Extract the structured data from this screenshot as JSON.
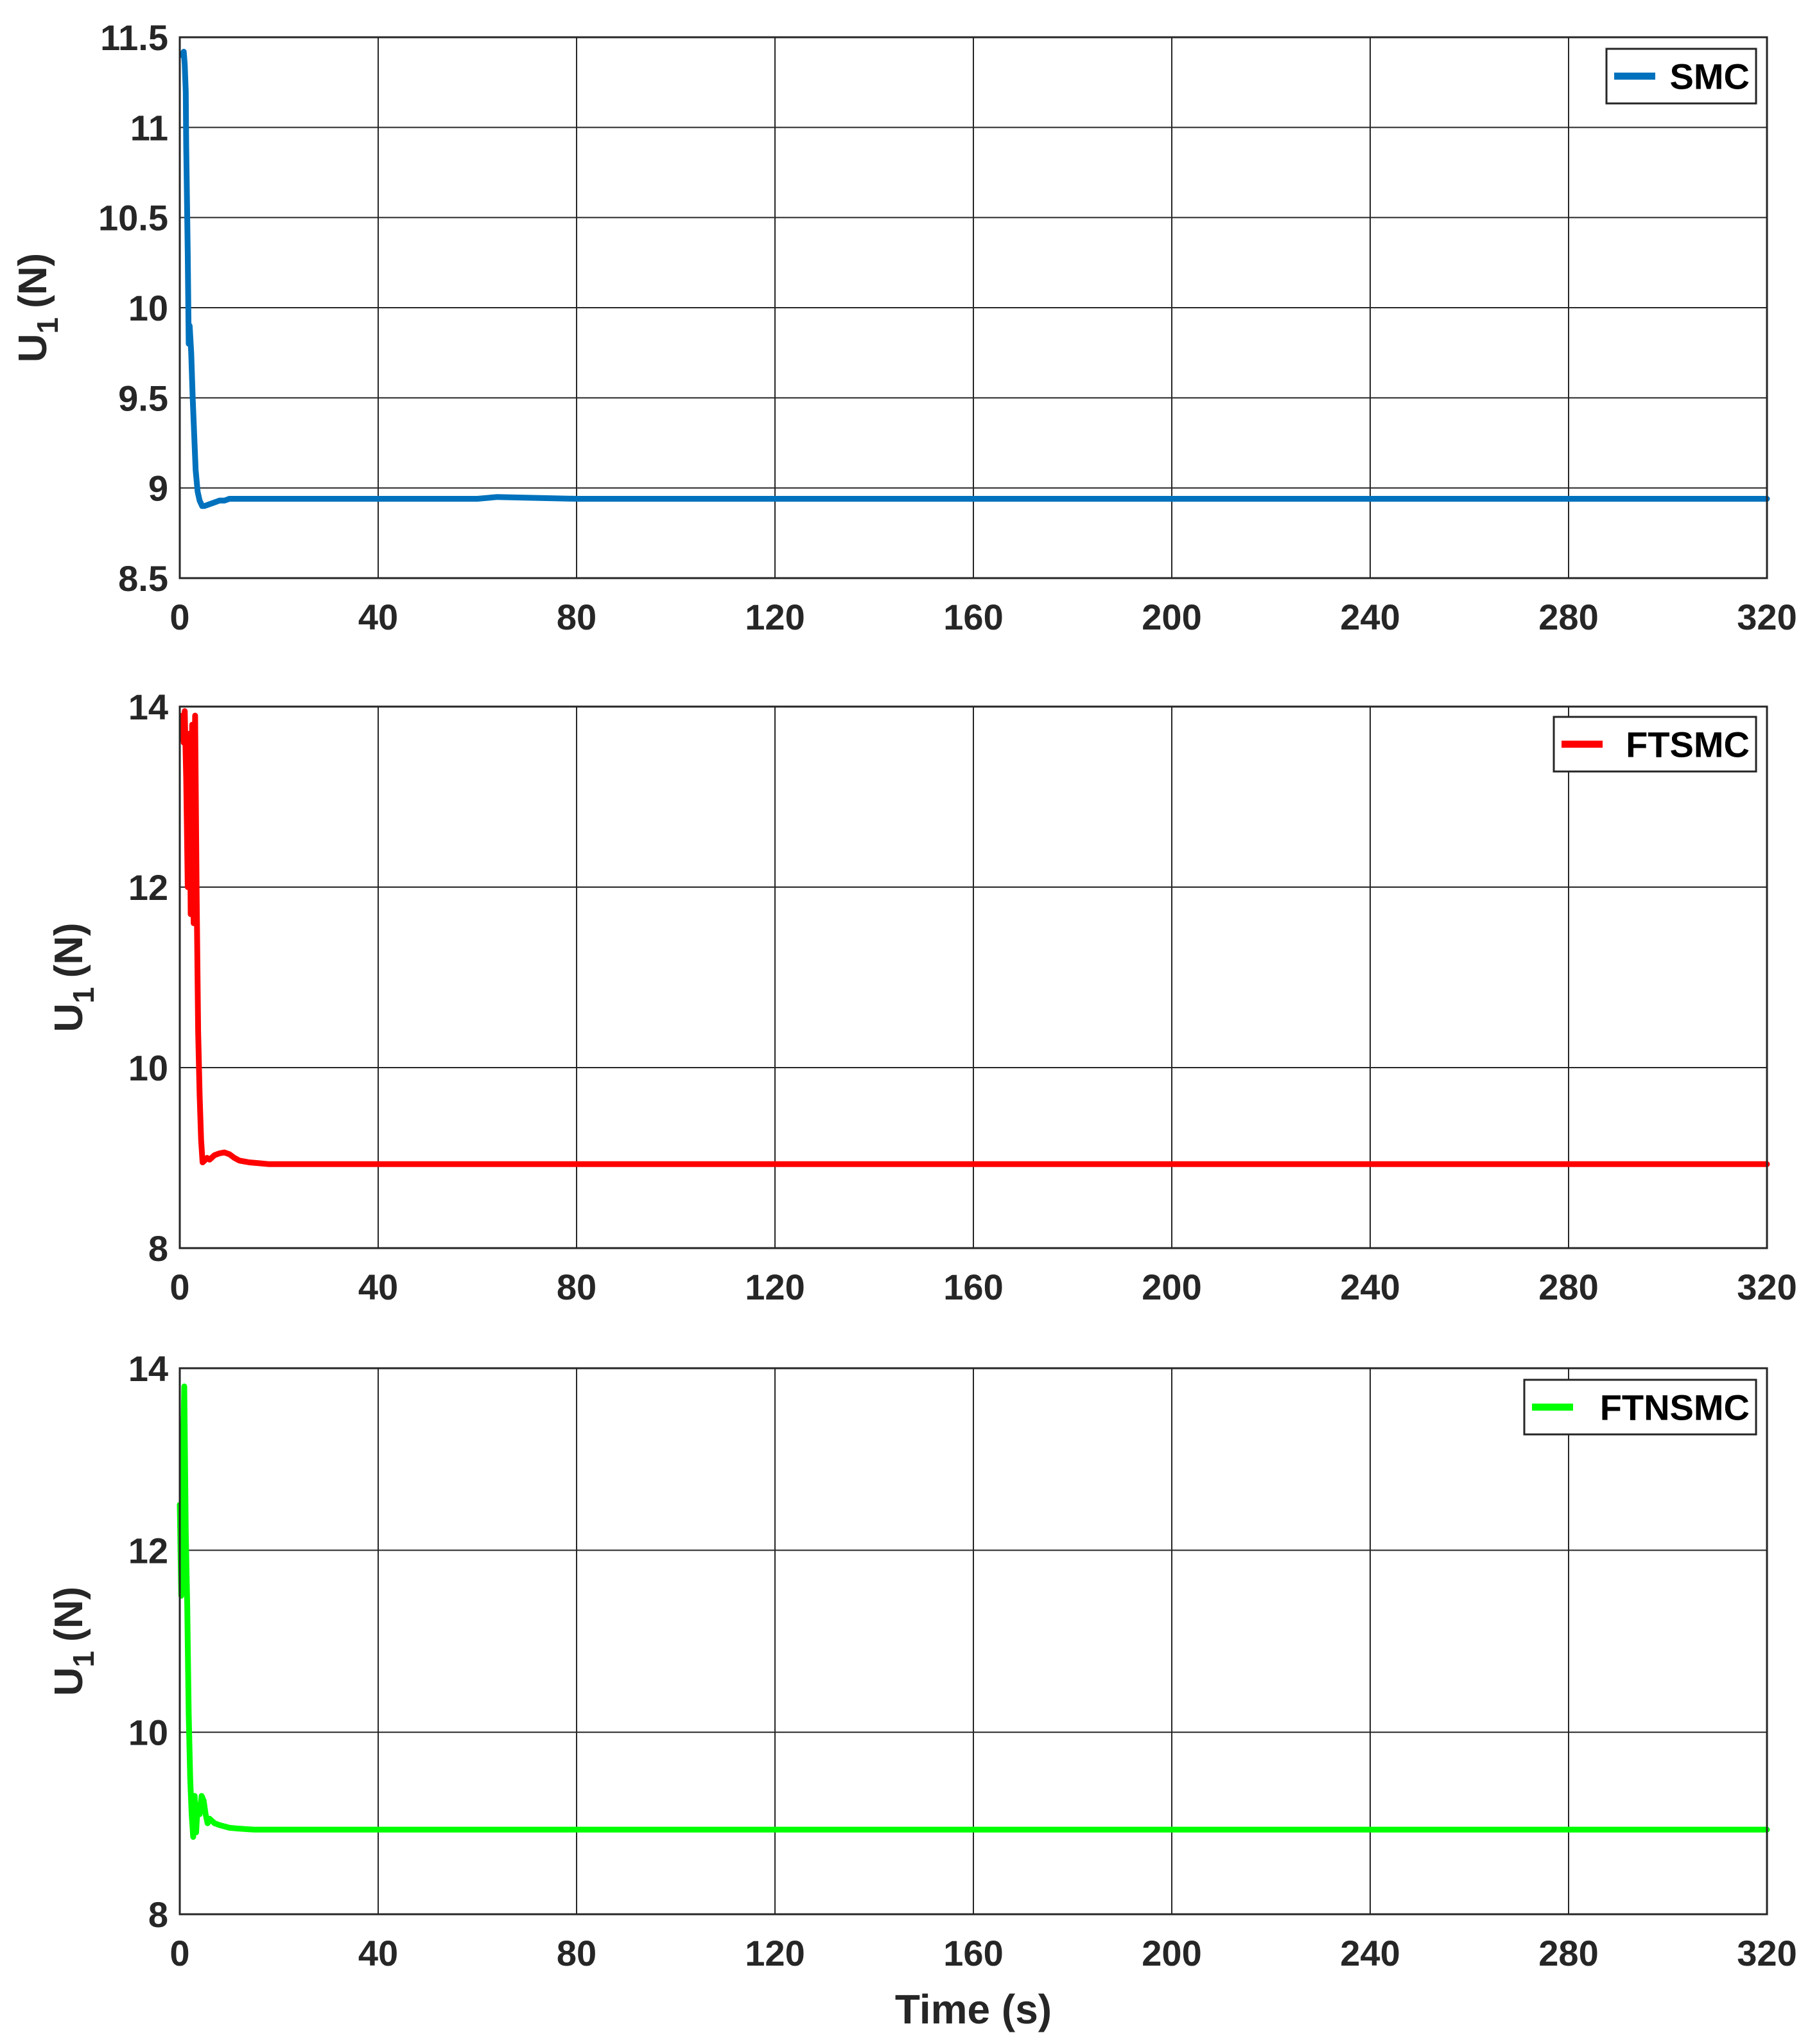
{
  "chart_data": [
    {
      "type": "line",
      "title": "",
      "xlabel": "",
      "ylabel": "U",
      "ylabel_sub": "1",
      "ylabel_unit": "(N)",
      "xlim": [
        0,
        320
      ],
      "ylim": [
        8.5,
        11.5
      ],
      "xticks": [
        0,
        40,
        80,
        120,
        160,
        200,
        240,
        280,
        320
      ],
      "yticks": [
        8.5,
        9,
        9.5,
        10,
        10.5,
        11,
        11.5
      ],
      "ytick_labels": [
        "8.5",
        "9",
        "9.5",
        "10",
        "10.5",
        "11",
        "11.5"
      ],
      "grid": true,
      "legend_position": "top-right",
      "series": [
        {
          "name": "SMC",
          "color": "#0072BD",
          "x": [
            0.5,
            0.8,
            1.0,
            1.2,
            1.3,
            1.6,
            1.8,
            2.0,
            2.3,
            2.6,
            2.9,
            3.2,
            3.6,
            4.0,
            4.5,
            5.0,
            6.0,
            7.0,
            8.0,
            9.0,
            10.0,
            12.0,
            15.0,
            20.0,
            40.0,
            60.0,
            64.0,
            80.0,
            120.0,
            160.0,
            200.0,
            240.0,
            280.0,
            320.0
          ],
          "y": [
            11.4,
            11.42,
            11.35,
            11.2,
            10.9,
            10.3,
            9.8,
            9.9,
            9.75,
            9.5,
            9.3,
            9.1,
            8.98,
            8.93,
            8.9,
            8.9,
            8.91,
            8.92,
            8.93,
            8.93,
            8.94,
            8.94,
            8.94,
            8.94,
            8.94,
            8.94,
            8.95,
            8.94,
            8.94,
            8.94,
            8.94,
            8.94,
            8.94,
            8.94
          ]
        }
      ]
    },
    {
      "type": "line",
      "title": "",
      "xlabel": "",
      "ylabel": "U",
      "ylabel_sub": "1",
      "ylabel_unit": "(N)",
      "xlim": [
        0,
        320
      ],
      "ylim": [
        8,
        14
      ],
      "xticks": [
        0,
        40,
        80,
        120,
        160,
        200,
        240,
        280,
        320
      ],
      "yticks": [
        8,
        10,
        12,
        14
      ],
      "ytick_labels": [
        "8",
        "10",
        "12",
        "14"
      ],
      "grid": true,
      "legend_position": "top-right",
      "series": [
        {
          "name": "FTSMC",
          "color": "#FF0000",
          "x": [
            0.5,
            0.8,
            1.0,
            1.3,
            1.6,
            1.9,
            2.2,
            2.5,
            2.8,
            3.1,
            3.4,
            3.7,
            4.0,
            4.3,
            4.6,
            5.0,
            5.5,
            6.0,
            7.0,
            8.0,
            9.0,
            10.0,
            11.0,
            12.0,
            14.0,
            16.0,
            18.0,
            20.0,
            40.0,
            80.0,
            120.0,
            160.0,
            200.0,
            240.0,
            280.0,
            320.0
          ],
          "y": [
            13.9,
            13.6,
            13.95,
            13.2,
            12.0,
            13.7,
            11.7,
            13.8,
            11.6,
            13.9,
            11.9,
            10.4,
            9.7,
            9.2,
            8.95,
            8.97,
            9.0,
            8.98,
            9.03,
            9.05,
            9.06,
            9.04,
            9.0,
            8.97,
            8.95,
            8.94,
            8.93,
            8.93,
            8.93,
            8.93,
            8.93,
            8.93,
            8.93,
            8.93,
            8.93,
            8.93
          ]
        }
      ]
    },
    {
      "type": "line",
      "title": "",
      "xlabel": "Time (s)",
      "ylabel": "U",
      "ylabel_sub": "1",
      "ylabel_unit": "(N)",
      "xlim": [
        0,
        320
      ],
      "ylim": [
        8,
        14
      ],
      "xticks": [
        0,
        40,
        80,
        120,
        160,
        200,
        240,
        280,
        320
      ],
      "yticks": [
        8,
        10,
        12,
        14
      ],
      "ytick_labels": [
        "8",
        "10",
        "12",
        "14"
      ],
      "grid": true,
      "legend_position": "top-right",
      "series": [
        {
          "name": "FTNSMC",
          "color": "#00FF00",
          "x": [
            0.0,
            0.3,
            0.6,
            0.9,
            1.2,
            1.5,
            1.8,
            2.1,
            2.4,
            2.7,
            3.0,
            3.3,
            3.6,
            4.0,
            4.4,
            4.8,
            5.2,
            5.6,
            6.0,
            7.0,
            8.0,
            10.0,
            12.0,
            15.0,
            20.0,
            40.0,
            80.0,
            120.0,
            160.0,
            200.0,
            240.0,
            280.0,
            320.0
          ],
          "y": [
            12.5,
            11.5,
            12.8,
            13.8,
            12.2,
            11.4,
            10.2,
            9.5,
            9.1,
            8.85,
            9.3,
            8.9,
            9.2,
            9.1,
            9.3,
            9.25,
            9.1,
            9.0,
            9.05,
            9.0,
            8.98,
            8.95,
            8.94,
            8.93,
            8.93,
            8.93,
            8.93,
            8.93,
            8.93,
            8.93,
            8.93,
            8.93,
            8.93
          ]
        }
      ]
    }
  ]
}
